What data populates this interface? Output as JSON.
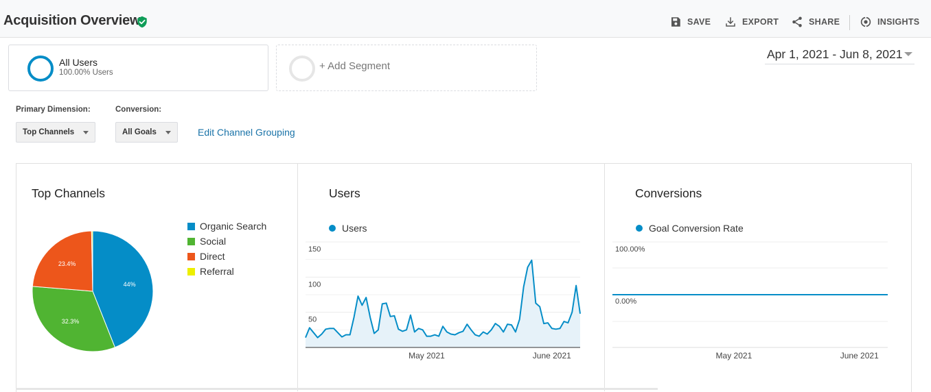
{
  "header": {
    "title": "Acquisition Overview",
    "actions": [
      {
        "label": "SAVE",
        "icon": "save-icon"
      },
      {
        "label": "EXPORT",
        "icon": "export-icon"
      },
      {
        "label": "SHARE",
        "icon": "share-icon"
      },
      {
        "label": "INSIGHTS",
        "icon": "insights-icon"
      }
    ]
  },
  "segments": {
    "primary": {
      "name": "All Users",
      "percent": "100.00% Users"
    },
    "add": {
      "label": "+ Add Segment"
    }
  },
  "date_range": "Apr 1, 2021 - Jun 8, 2021",
  "controls": {
    "primary_dimension_label": "Primary Dimension:",
    "primary_dimension_value": "Top Channels",
    "conversion_label": "Conversion:",
    "conversion_value": "All Goals",
    "edit_link": "Edit Channel Grouping"
  },
  "colors": {
    "organic": "#058dc7",
    "social": "#50b432",
    "direct": "#ed561b",
    "referral": "#edef00",
    "accent": "#058dc7",
    "verified": "#0f9d58"
  },
  "chart_data": [
    {
      "type": "pie",
      "title": "Top Channels",
      "series": [
        {
          "name": "Organic Search",
          "value": 44.0,
          "label": "44%",
          "color": "#058dc7"
        },
        {
          "name": "Social",
          "value": 32.3,
          "label": "32.3%",
          "color": "#50b432"
        },
        {
          "name": "Direct",
          "value": 23.4,
          "label": "23.4%",
          "color": "#ed561b"
        },
        {
          "name": "Referral",
          "value": 0.3,
          "label": "",
          "color": "#edef00"
        }
      ]
    },
    {
      "type": "area",
      "title": "Users",
      "legend": "Users",
      "yticks": [
        "150",
        "100",
        "50"
      ],
      "ylim": [
        0,
        150
      ],
      "xticks": [
        {
          "label": "May 2021",
          "index": 30
        },
        {
          "label": "June 2021",
          "index": 61
        }
      ],
      "values": [
        14,
        28,
        21,
        14,
        19,
        26,
        27,
        27,
        21,
        15,
        18,
        18,
        43,
        73,
        60,
        71,
        43,
        20,
        25,
        62,
        63,
        44,
        45,
        26,
        23,
        25,
        46,
        22,
        27,
        25,
        16,
        16,
        18,
        16,
        30,
        22,
        19,
        18,
        21,
        23,
        33,
        25,
        18,
        16,
        22,
        19,
        25,
        34,
        30,
        22,
        33,
        32,
        22,
        40,
        86,
        114,
        124,
        63,
        58,
        34,
        35,
        27,
        26,
        27,
        37,
        35,
        50,
        88,
        48
      ]
    },
    {
      "type": "line",
      "title": "Conversions",
      "legend": "Goal Conversion Rate",
      "yticks": [
        "100.00%",
        "0.00%"
      ],
      "xticks": [
        {
          "label": "May 2021",
          "index": 30
        },
        {
          "label": "June 2021",
          "index": 61
        }
      ],
      "value": 0
    }
  ]
}
